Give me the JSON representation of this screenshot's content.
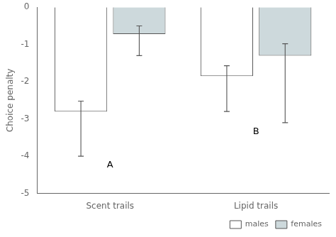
{
  "chart_data": {
    "type": "bar",
    "categories": [
      "Scent trails",
      "Lipid trails"
    ],
    "series": [
      {
        "name": "males",
        "color": "#ffffff",
        "values": [
          -2.8,
          -1.85
        ],
        "yerr_lower": [
          1.2,
          0.95
        ],
        "yerr_upper": [
          0.28,
          0.28
        ]
      },
      {
        "name": "females",
        "color": "#cdd9dc",
        "values": [
          -0.72,
          -1.3
        ],
        "yerr_lower": [
          0.58,
          1.8
        ],
        "yerr_upper": [
          0.22,
          0.32
        ]
      }
    ],
    "ylabel": "Choice penalty",
    "ylim": [
      -5,
      0
    ],
    "yticks": [
      0,
      -1,
      -2,
      -3,
      -4,
      -5
    ],
    "annotations": [
      "A",
      "B"
    ],
    "legend": "lower right",
    "grid": false
  }
}
